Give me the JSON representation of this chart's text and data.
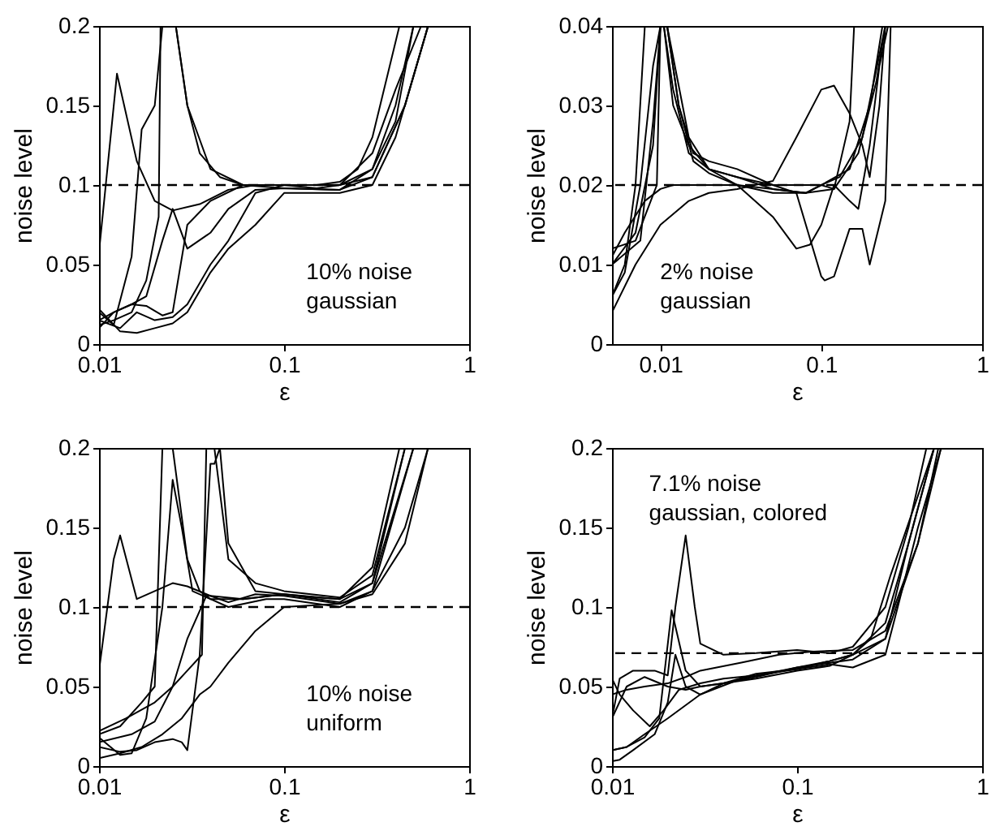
{
  "chart_data": [
    {
      "type": "line",
      "xlabel": "ε",
      "ylabel": "noise level",
      "log": "x",
      "xlim": [
        0.01,
        1
      ],
      "xticks": [
        0.01,
        0.1,
        1
      ],
      "ylim": [
        0,
        0.2
      ],
      "yticks": [
        0,
        0.05,
        0.1,
        0.15,
        0.2
      ],
      "ref_lines": [
        {
          "axis": "y",
          "value": 0.1,
          "line_style": "dashed",
          "color": "#000000"
        }
      ],
      "annotations": [
        "10% noise",
        "gaussian"
      ],
      "series": [
        {
          "color": "#000000",
          "x": [
            0.01,
            0.0125,
            0.016,
            0.02,
            0.025,
            0.035,
            0.05,
            0.07,
            0.1,
            0.15,
            0.2,
            0.25,
            0.3,
            0.42
          ],
          "values": [
            0.058,
            0.17,
            0.115,
            0.09,
            0.084,
            0.088,
            0.097,
            0.1,
            0.1,
            0.1,
            0.102,
            0.11,
            0.13,
            0.2
          ]
        },
        {
          "color": "#000000",
          "x": [
            0.01,
            0.012,
            0.015,
            0.017,
            0.02,
            0.022,
            0.026,
            0.03,
            0.035,
            0.045,
            0.06,
            0.1,
            0.15,
            0.2,
            0.3,
            0.4,
            0.55
          ],
          "values": [
            0.02,
            0.012,
            0.055,
            0.135,
            0.15,
            0.2,
            0.2,
            0.15,
            0.12,
            0.105,
            0.1,
            0.1,
            0.098,
            0.1,
            0.12,
            0.16,
            0.2
          ]
        },
        {
          "color": "#000000",
          "x": [
            0.01,
            0.012,
            0.015,
            0.018,
            0.021,
            0.0215,
            0.023,
            0.026,
            0.03,
            0.04,
            0.06,
            0.1,
            0.2,
            0.3,
            0.4,
            0.5
          ],
          "values": [
            0.012,
            0.015,
            0.02,
            0.04,
            0.08,
            0.2,
            0.2,
            0.2,
            0.15,
            0.11,
            0.1,
            0.098,
            0.097,
            0.11,
            0.14,
            0.2
          ]
        },
        {
          "color": "#000000",
          "x": [
            0.01,
            0.012,
            0.015,
            0.018,
            0.022,
            0.025,
            0.03,
            0.04,
            0.05,
            0.07,
            0.1,
            0.2,
            0.3,
            0.45,
            0.6
          ],
          "values": [
            0.01,
            0.02,
            0.025,
            0.03,
            0.065,
            0.085,
            0.06,
            0.07,
            0.085,
            0.097,
            0.098,
            0.097,
            0.105,
            0.15,
            0.2
          ]
        },
        {
          "color": "#000000",
          "x": [
            0.01,
            0.013,
            0.016,
            0.02,
            0.025,
            0.03,
            0.04,
            0.05,
            0.07,
            0.1,
            0.2,
            0.3,
            0.4,
            0.6
          ],
          "values": [
            0.022,
            0.008,
            0.007,
            0.01,
            0.013,
            0.02,
            0.045,
            0.06,
            0.075,
            0.095,
            0.095,
            0.1,
            0.13,
            0.2
          ]
        },
        {
          "color": "#000000",
          "x": [
            0.01,
            0.013,
            0.016,
            0.02,
            0.025,
            0.03,
            0.04,
            0.05,
            0.07,
            0.1,
            0.2,
            0.3,
            0.45,
            0.6
          ],
          "values": [
            0.015,
            0.01,
            0.02,
            0.015,
            0.017,
            0.025,
            0.05,
            0.065,
            0.095,
            0.1,
            0.1,
            0.105,
            0.15,
            0.2
          ]
        },
        {
          "color": "#000000",
          "x": [
            0.01,
            0.012,
            0.015,
            0.018,
            0.022,
            0.025,
            0.03,
            0.04,
            0.06,
            0.1,
            0.2,
            0.3,
            0.4,
            0.5
          ],
          "values": [
            0.015,
            0.02,
            0.025,
            0.024,
            0.018,
            0.02,
            0.075,
            0.09,
            0.1,
            0.1,
            0.1,
            0.11,
            0.15,
            0.2
          ]
        }
      ]
    },
    {
      "type": "line",
      "xlabel": "ε",
      "ylabel": "noise level",
      "log": "x",
      "xlim": [
        0.005,
        1
      ],
      "xticks": [
        0.01,
        0.1,
        1
      ],
      "ylim": [
        0,
        0.04
      ],
      "yticks": [
        0,
        0.01,
        0.02,
        0.03,
        0.04
      ],
      "ref_lines": [
        {
          "axis": "y",
          "value": 0.02,
          "line_style": "dashed",
          "color": "#000000"
        }
      ],
      "annotations": [
        "2% noise",
        "gaussian"
      ],
      "series": [
        {
          "color": "#000000",
          "x": [
            0.005,
            0.006,
            0.007,
            0.008,
            0.0085,
            0.01,
            0.011,
            0.013,
            0.016,
            0.02,
            0.03,
            0.05,
            0.08,
            0.1,
            0.15,
            0.2,
            0.24
          ],
          "values": [
            0.006,
            0.01,
            0.02,
            0.04,
            0.04,
            0.04,
            0.04,
            0.03,
            0.024,
            0.023,
            0.022,
            0.02,
            0.02,
            0.02,
            0.022,
            0.03,
            0.04
          ]
        },
        {
          "color": "#000000",
          "x": [
            0.005,
            0.007,
            0.0095,
            0.01,
            0.0105,
            0.012,
            0.015,
            0.02,
            0.03,
            0.05,
            0.08,
            0.12,
            0.17,
            0.22,
            0.25
          ],
          "values": [
            0.012,
            0.013,
            0.02,
            0.04,
            0.04,
            0.03,
            0.025,
            0.022,
            0.021,
            0.0195,
            0.019,
            0.0195,
            0.024,
            0.033,
            0.04
          ]
        },
        {
          "color": "#000000",
          "x": [
            0.005,
            0.006,
            0.008,
            0.01,
            0.012,
            0.015,
            0.02,
            0.03,
            0.05,
            0.08,
            0.1,
            0.13,
            0.18,
            0.25
          ],
          "values": [
            0.011,
            0.014,
            0.018,
            0.0195,
            0.02,
            0.02,
            0.02,
            0.02,
            0.0195,
            0.019,
            0.02,
            0.021,
            0.026,
            0.04
          ]
        },
        {
          "color": "#000000",
          "x": [
            0.005,
            0.007,
            0.01,
            0.015,
            0.02,
            0.03,
            0.05,
            0.07,
            0.1,
            0.12,
            0.15,
            0.18,
            0.2,
            0.23,
            0.25
          ],
          "values": [
            0.004,
            0.01,
            0.015,
            0.018,
            0.019,
            0.0195,
            0.0205,
            0.026,
            0.032,
            0.0325,
            0.029,
            0.025,
            0.021,
            0.03,
            0.04
          ]
        },
        {
          "color": "#000000",
          "x": [
            0.005,
            0.007,
            0.009,
            0.01,
            0.0105,
            0.012,
            0.015,
            0.02,
            0.03,
            0.05,
            0.07,
            0.085,
            0.1,
            0.12,
            0.15,
            0.17,
            0.2,
            0.23,
            0.26
          ],
          "values": [
            0.01,
            0.014,
            0.025,
            0.04,
            0.04,
            0.032,
            0.024,
            0.022,
            0.02,
            0.016,
            0.012,
            0.0125,
            0.015,
            0.02,
            0.018,
            0.017,
            0.025,
            0.035,
            0.04
          ]
        },
        {
          "color": "#000000",
          "x": [
            0.005,
            0.0075,
            0.009,
            0.01,
            0.011,
            0.015,
            0.02,
            0.03,
            0.05,
            0.07,
            0.1,
            0.105,
            0.12,
            0.15,
            0.18,
            0.2,
            0.23,
            0.25,
            0.27
          ],
          "values": [
            0.01,
            0.013,
            0.028,
            0.04,
            0.04,
            0.026,
            0.022,
            0.021,
            0.02,
            0.019,
            0.0085,
            0.008,
            0.0085,
            0.0145,
            0.0145,
            0.01,
            0.015,
            0.018,
            0.04
          ]
        },
        {
          "color": "#000000",
          "x": [
            0.005,
            0.006,
            0.0075,
            0.009,
            0.01,
            0.011,
            0.013,
            0.016,
            0.02,
            0.03,
            0.05,
            0.08,
            0.1,
            0.12,
            0.15,
            0.16
          ],
          "values": [
            0.006,
            0.009,
            0.02,
            0.035,
            0.04,
            0.04,
            0.03,
            0.023,
            0.0215,
            0.02,
            0.019,
            0.019,
            0.02,
            0.0195,
            0.028,
            0.04
          ]
        }
      ]
    },
    {
      "type": "line",
      "xlabel": "ε",
      "ylabel": "noise level",
      "log": "x",
      "xlim": [
        0.01,
        1
      ],
      "xticks": [
        0.01,
        0.1,
        1
      ],
      "ylim": [
        0,
        0.2
      ],
      "yticks": [
        0,
        0.05,
        0.1,
        0.15,
        0.2
      ],
      "ref_lines": [
        {
          "axis": "y",
          "value": 0.1,
          "line_style": "dashed",
          "color": "#000000"
        }
      ],
      "annotations": [
        "10% noise",
        "uniform"
      ],
      "series": [
        {
          "color": "#000000",
          "x": [
            0.01,
            0.012,
            0.013,
            0.016,
            0.02,
            0.025,
            0.03,
            0.04,
            0.06,
            0.1,
            0.15,
            0.2,
            0.3,
            0.42
          ],
          "values": [
            0.06,
            0.13,
            0.145,
            0.105,
            0.11,
            0.115,
            0.113,
            0.107,
            0.105,
            0.108,
            0.106,
            0.105,
            0.125,
            0.2
          ]
        },
        {
          "color": "#000000",
          "x": [
            0.01,
            0.013,
            0.017,
            0.02,
            0.022,
            0.025,
            0.03,
            0.035,
            0.04,
            0.06,
            0.1,
            0.2,
            0.3,
            0.45
          ],
          "values": [
            0.02,
            0.025,
            0.04,
            0.05,
            0.2,
            0.2,
            0.13,
            0.11,
            0.105,
            0.105,
            0.108,
            0.103,
            0.115,
            0.2
          ]
        },
        {
          "color": "#000000",
          "x": [
            0.01,
            0.013,
            0.015,
            0.018,
            0.022,
            0.025,
            0.028,
            0.032,
            0.04,
            0.05,
            0.08,
            0.1,
            0.2,
            0.3,
            0.5
          ],
          "values": [
            0.018,
            0.007,
            0.008,
            0.03,
            0.1,
            0.18,
            0.15,
            0.11,
            0.105,
            0.1,
            0.105,
            0.105,
            0.1,
            0.11,
            0.2
          ]
        },
        {
          "color": "#000000",
          "x": [
            0.01,
            0.013,
            0.016,
            0.02,
            0.025,
            0.028,
            0.03,
            0.035,
            0.04,
            0.042,
            0.045,
            0.05,
            0.07,
            0.1,
            0.2,
            0.3,
            0.5
          ],
          "values": [
            0.012,
            0.009,
            0.01,
            0.015,
            0.017,
            0.015,
            0.01,
            0.07,
            0.19,
            0.19,
            0.2,
            0.14,
            0.11,
            0.108,
            0.105,
            0.115,
            0.2
          ]
        },
        {
          "color": "#000000",
          "x": [
            0.01,
            0.013,
            0.017,
            0.022,
            0.028,
            0.035,
            0.04,
            0.05,
            0.07,
            0.1,
            0.2,
            0.3,
            0.45,
            0.6
          ],
          "values": [
            0.005,
            0.008,
            0.012,
            0.02,
            0.03,
            0.045,
            0.05,
            0.065,
            0.085,
            0.1,
            0.102,
            0.11,
            0.15,
            0.2
          ]
        },
        {
          "color": "#000000",
          "x": [
            0.01,
            0.015,
            0.02,
            0.025,
            0.03,
            0.038,
            0.04,
            0.05,
            0.07,
            0.1,
            0.2,
            0.3,
            0.45,
            0.6
          ],
          "values": [
            0.015,
            0.02,
            0.028,
            0.05,
            0.08,
            0.107,
            0.107,
            0.103,
            0.108,
            0.107,
            0.102,
            0.108,
            0.14,
            0.2
          ]
        },
        {
          "color": "#000000",
          "x": [
            0.01,
            0.014,
            0.02,
            0.025,
            0.03,
            0.036,
            0.038,
            0.042,
            0.05,
            0.07,
            0.1,
            0.2,
            0.3,
            0.45
          ],
          "values": [
            0.022,
            0.03,
            0.04,
            0.05,
            0.06,
            0.07,
            0.2,
            0.2,
            0.13,
            0.115,
            0.11,
            0.106,
            0.12,
            0.2
          ]
        }
      ]
    },
    {
      "type": "line",
      "xlabel": "ε",
      "ylabel": "noise level",
      "log": "x",
      "xlim": [
        0.01,
        1
      ],
      "xticks": [
        0.01,
        0.1,
        1
      ],
      "ylim": [
        0,
        0.2
      ],
      "yticks": [
        0,
        0.05,
        0.1,
        0.15,
        0.2
      ],
      "ref_lines": [
        {
          "axis": "y",
          "value": 0.071,
          "line_style": "dashed",
          "color": "#000000"
        }
      ],
      "annotations": [
        "7.1% noise",
        "gaussian, colored"
      ],
      "series": [
        {
          "color": "#000000",
          "x": [
            0.01,
            0.011,
            0.013,
            0.017,
            0.02,
            0.022,
            0.025,
            0.028,
            0.03,
            0.04,
            0.06,
            0.1,
            0.15,
            0.2,
            0.3,
            0.4,
            0.5
          ],
          "values": [
            0.03,
            0.055,
            0.06,
            0.06,
            0.057,
            0.1,
            0.145,
            0.1,
            0.077,
            0.07,
            0.071,
            0.073,
            0.071,
            0.075,
            0.1,
            0.15,
            0.2
          ]
        },
        {
          "color": "#000000",
          "x": [
            0.01,
            0.012,
            0.015,
            0.018,
            0.021,
            0.025,
            0.03,
            0.04,
            0.06,
            0.1,
            0.15,
            0.2,
            0.3,
            0.4,
            0.55
          ],
          "values": [
            0.01,
            0.012,
            0.018,
            0.03,
            0.098,
            0.06,
            0.05,
            0.052,
            0.056,
            0.062,
            0.066,
            0.07,
            0.09,
            0.14,
            0.2
          ]
        },
        {
          "color": "#000000",
          "x": [
            0.01,
            0.011,
            0.013,
            0.016,
            0.019,
            0.023,
            0.03,
            0.04,
            0.06,
            0.1,
            0.15,
            0.2,
            0.3,
            0.4,
            0.55
          ],
          "values": [
            0.055,
            0.045,
            0.035,
            0.025,
            0.035,
            0.048,
            0.052,
            0.055,
            0.057,
            0.061,
            0.066,
            0.07,
            0.08,
            0.14,
            0.2
          ]
        },
        {
          "color": "#000000",
          "x": [
            0.01,
            0.012,
            0.015,
            0.02,
            0.03,
            0.04,
            0.06,
            0.1,
            0.15,
            0.2,
            0.3,
            0.35,
            0.45,
            0.6
          ],
          "values": [
            0.01,
            0.012,
            0.02,
            0.03,
            0.045,
            0.052,
            0.058,
            0.061,
            0.064,
            0.062,
            0.07,
            0.1,
            0.15,
            0.2
          ]
        },
        {
          "color": "#000000",
          "x": [
            0.01,
            0.012,
            0.015,
            0.02,
            0.025,
            0.03,
            0.05,
            0.08,
            0.12,
            0.2,
            0.3,
            0.45,
            0.6
          ],
          "values": [
            0.045,
            0.048,
            0.05,
            0.052,
            0.056,
            0.06,
            0.065,
            0.07,
            0.072,
            0.073,
            0.085,
            0.14,
            0.2
          ]
        },
        {
          "color": "#000000",
          "x": [
            0.01,
            0.011,
            0.013,
            0.017,
            0.02,
            0.022,
            0.025,
            0.03,
            0.05,
            0.1,
            0.2,
            0.3,
            0.45,
            0.58
          ],
          "values": [
            0.003,
            0.004,
            0.01,
            0.02,
            0.04,
            0.07,
            0.05,
            0.045,
            0.055,
            0.062,
            0.067,
            0.08,
            0.14,
            0.2
          ]
        },
        {
          "color": "#000000",
          "x": [
            0.01,
            0.012,
            0.015,
            0.02,
            0.025,
            0.03,
            0.04,
            0.06,
            0.1,
            0.15,
            0.2,
            0.25,
            0.32,
            0.45,
            0.55
          ],
          "values": [
            0.03,
            0.05,
            0.056,
            0.05,
            0.048,
            0.05,
            0.052,
            0.055,
            0.06,
            0.063,
            0.07,
            0.08,
            0.12,
            0.17,
            0.2
          ]
        }
      ]
    }
  ]
}
